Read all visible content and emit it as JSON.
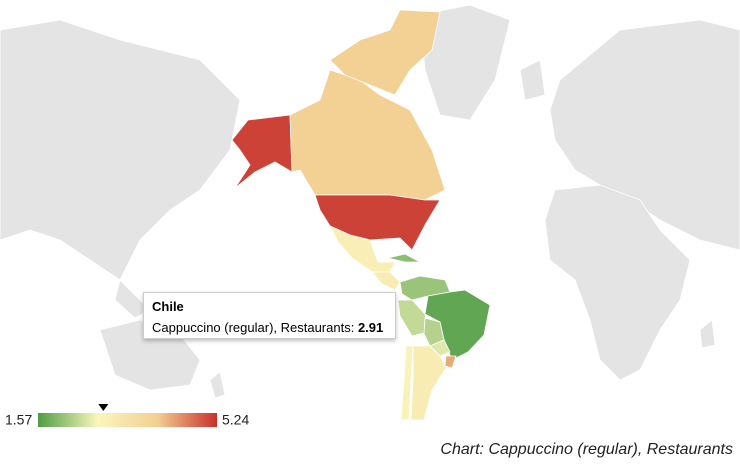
{
  "chart_data": {
    "type": "geo",
    "title": "Chart: Cappuccino (regular), Restaurants",
    "series_name": "Cappuccino (regular), Restaurants",
    "categories": [
      null,
      null,
      null,
      null,
      null,
      null,
      null,
      null,
      null,
      null,
      null,
      null,
      "Chile",
      null,
      null
    ],
    "values": [
      5.1,
      4.0,
      4.0,
      5.1,
      3.0,
      3.1,
      2.0,
      2.1,
      1.7,
      2.4,
      2.3,
      2.6,
      2.91,
      3.1,
      4.3
    ],
    "color_axis": {
      "min": 1.57,
      "max": 5.24,
      "colors": [
        "#4f9d45",
        "#faf6bd",
        "#f3cf92",
        "#c8302a"
      ]
    }
  }
}
